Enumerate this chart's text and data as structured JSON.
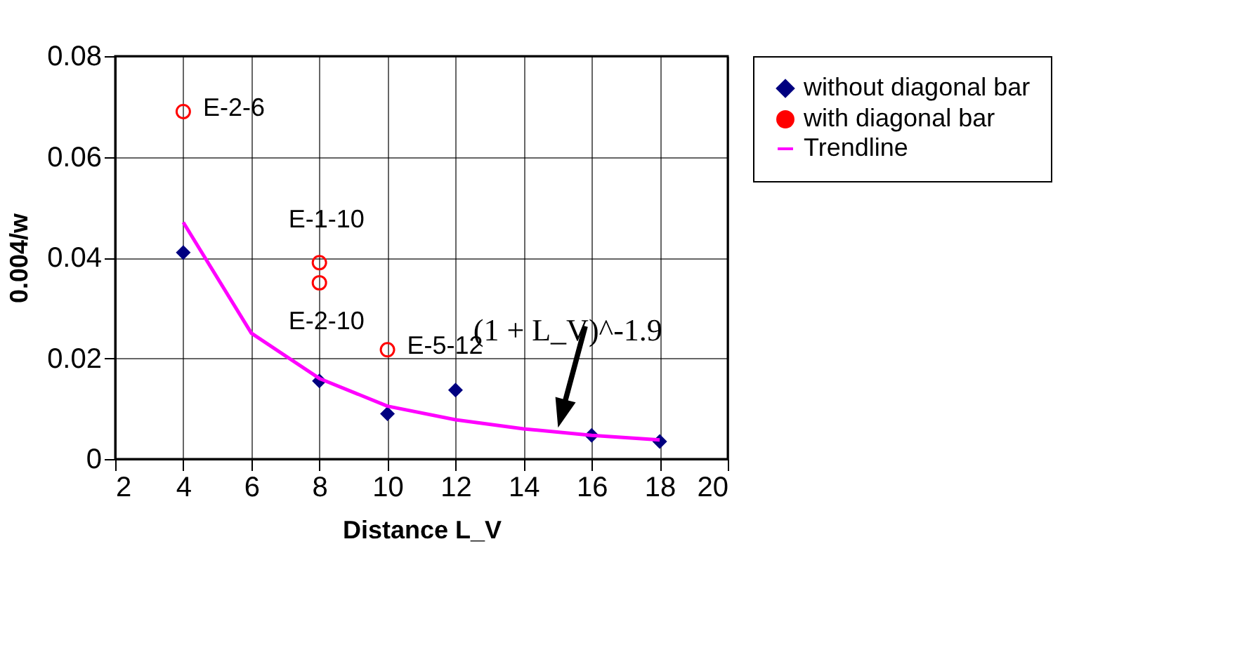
{
  "chart_data": {
    "type": "scatter",
    "xlabel": "Distance L_V",
    "ylabel": "0.004/w",
    "xlim": [
      2,
      20
    ],
    "xticks": [
      2,
      4,
      6,
      8,
      10,
      12,
      14,
      16,
      18,
      20
    ],
    "ylim": [
      0,
      0.08
    ],
    "yticks": [
      0,
      0.02,
      0.04,
      0.06,
      0.08
    ],
    "grid": true,
    "legend": "right",
    "series": [
      {
        "name": "without diagonal bar",
        "marker": "diamond",
        "color": "#000080",
        "x": [
          4,
          8,
          10,
          12,
          16,
          18
        ],
        "values": [
          0.041,
          0.0155,
          0.009,
          0.0137,
          0.0047,
          0.0035
        ]
      },
      {
        "name": "with diagonal bar",
        "marker": "circle",
        "color": "#ff0000",
        "x": [
          4,
          8,
          8,
          10
        ],
        "values": [
          0.069,
          0.039,
          0.035,
          0.0217
        ]
      },
      {
        "name": "Trendline",
        "type": "line",
        "marker": "none",
        "color": "#ff00ff",
        "x": [
          4,
          6,
          8,
          10,
          12,
          14,
          16,
          18
        ],
        "values": [
          0.047,
          0.025,
          0.016,
          0.0105,
          0.0078,
          0.006,
          0.0047,
          0.0038
        ]
      }
    ],
    "annotations": [
      {
        "text": "E-2-6",
        "x": 4,
        "y": 0.069
      },
      {
        "text": "E-1-10",
        "x": 8,
        "y": 0.039
      },
      {
        "text": "E-2-10",
        "x": 8,
        "y": 0.035
      },
      {
        "text": "E-5-12",
        "x": 10,
        "y": 0.0217
      },
      {
        "text": "(1 + L_V)^-1.9",
        "x": 15,
        "y": 0.006
      }
    ]
  }
}
